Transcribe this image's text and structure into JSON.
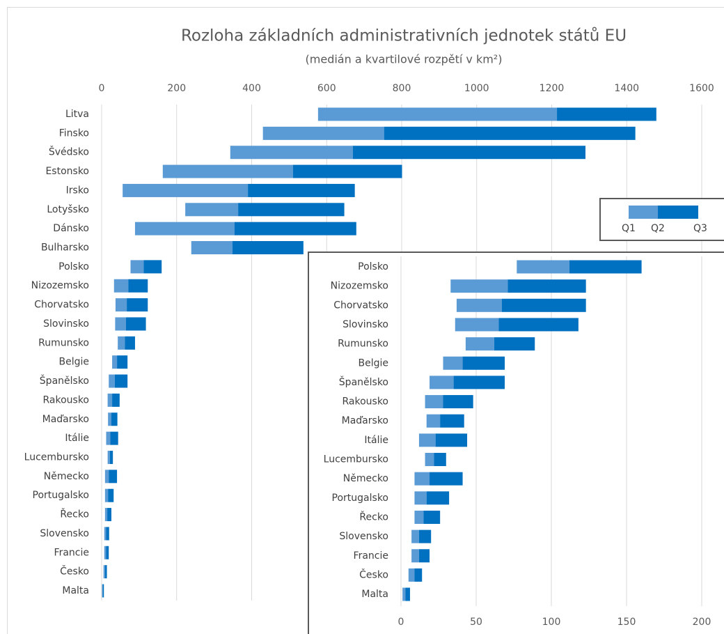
{
  "chart_data": [
    {
      "type": "floating-bar",
      "title": "Rozloha základních administrativních jednotek států EU",
      "subtitle": "(medián a kvartilové rozpětí v km²)",
      "categories": [
        "Litva",
        "Finsko",
        "Švédsko",
        "Estonsko",
        "Irsko",
        "Lotyšsko",
        "Dánsko",
        "Bulharsko",
        "Polsko",
        "Nizozemsko",
        "Chorvatsko",
        "Slovinsko",
        "Rumunsko",
        "Belgie",
        "Španělsko",
        "Rakousko",
        "Maďarsko",
        "Itálie",
        "Lucembursko",
        "Německo",
        "Portugalsko",
        "Řecko",
        "Slovensko",
        "Francie",
        "Česko",
        "Malta"
      ],
      "series": [
        {
          "name": "Q1",
          "values": [
            577,
            430,
            343,
            163,
            56,
            223,
            89,
            239,
            77,
            33,
            37,
            36,
            43,
            28,
            19,
            16,
            17,
            12,
            16,
            9,
            9,
            9,
            7,
            7,
            5,
            1
          ]
        },
        {
          "name": "Q2",
          "color": "#5b9bd5",
          "values": [
            1214,
            753,
            670,
            510,
            390,
            364,
            354,
            349,
            112,
            71,
            67,
            65,
            62,
            41,
            35,
            28,
            26,
            23,
            22,
            19,
            17,
            15,
            12,
            12,
            9,
            3
          ]
        },
        {
          "name": "Q3",
          "color": "#0070c0",
          "values": [
            1479,
            1423,
            1290,
            801,
            675,
            647,
            679,
            538,
            160,
            123,
            123,
            118,
            89,
            69,
            69,
            48,
            42,
            44,
            30,
            41,
            32,
            26,
            20,
            19,
            14,
            6
          ]
        }
      ],
      "xlim": [
        0,
        1600
      ],
      "xticks": [
        0,
        200,
        400,
        600,
        800,
        1000,
        1200,
        1400,
        1600
      ],
      "grid": true,
      "legend": "upper right"
    },
    {
      "type": "floating-bar",
      "categories": [
        "Polsko",
        "Nizozemsko",
        "Chorvatsko",
        "Slovinsko",
        "Rumunsko",
        "Belgie",
        "Španělsko",
        "Rakousko",
        "Maďarsko",
        "Itálie",
        "Lucembursko",
        "Německo",
        "Portugalsko",
        "Řecko",
        "Slovensko",
        "Francie",
        "Česko",
        "Malta"
      ],
      "series": [
        {
          "name": "Q1",
          "values": [
            77,
            33,
            37,
            36,
            43,
            28,
            19,
            16,
            17,
            12,
            16,
            9,
            9,
            9,
            7,
            7,
            5,
            1
          ]
        },
        {
          "name": "Q2",
          "color": "#5b9bd5",
          "values": [
            112,
            71,
            67,
            65,
            62,
            41,
            35,
            28,
            26,
            23,
            22,
            19,
            17,
            15,
            12,
            12,
            9,
            3
          ]
        },
        {
          "name": "Q3",
          "color": "#0070c0",
          "values": [
            160,
            123,
            123,
            118,
            89,
            69,
            69,
            48,
            42,
            44,
            30,
            41,
            32,
            26,
            20,
            19,
            14,
            6
          ]
        }
      ],
      "xlim": [
        0,
        200
      ],
      "xticks": [
        0,
        50,
        100,
        150,
        200
      ],
      "grid": true
    }
  ]
}
